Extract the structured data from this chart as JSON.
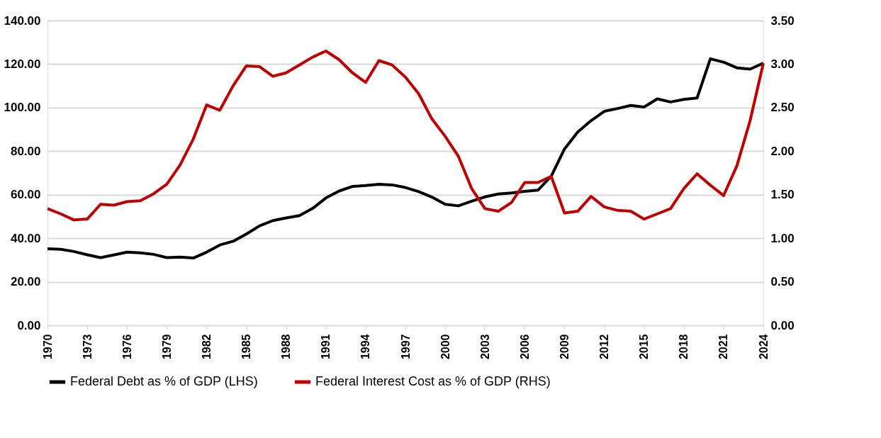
{
  "chart_data": {
    "type": "line",
    "x": [
      1970,
      1971,
      1972,
      1973,
      1974,
      1975,
      1976,
      1977,
      1978,
      1979,
      1980,
      1981,
      1982,
      1983,
      1984,
      1985,
      1986,
      1987,
      1988,
      1989,
      1990,
      1991,
      1992,
      1993,
      1994,
      1995,
      1996,
      1997,
      1998,
      1999,
      2000,
      2001,
      2002,
      2003,
      2004,
      2005,
      2006,
      2007,
      2008,
      2009,
      2010,
      2011,
      2012,
      2013,
      2014,
      2015,
      2016,
      2017,
      2018,
      2019,
      2020,
      2021,
      2022,
      2023,
      2024
    ],
    "series": [
      {
        "name": "Federal Debt as % of GDP (LHS)",
        "color": "#000000",
        "axis": "y",
        "values": [
          35.2,
          34.9,
          33.9,
          32.4,
          31.1,
          32.3,
          33.6,
          33.3,
          32.6,
          31.1,
          31.3,
          30.9,
          33.6,
          36.9,
          38.6,
          41.9,
          45.7,
          48.1,
          49.3,
          50.4,
          53.7,
          58.5,
          61.7,
          63.8,
          64.2,
          64.8,
          64.5,
          63.3,
          61.4,
          58.9,
          55.6,
          54.9,
          57.0,
          59.0,
          60.3,
          60.8,
          61.5,
          62.1,
          68.5,
          81.0,
          88.8,
          94.0,
          98.3,
          99.6,
          101.0,
          100.3,
          104.0,
          102.6,
          103.8,
          104.4,
          122.4,
          120.9,
          118.3,
          117.7,
          120.4
        ]
      },
      {
        "name": "Federal Interest Cost as % of GDP (RHS)",
        "color": "#c00000",
        "axis": "y2",
        "values": [
          1.34,
          1.28,
          1.21,
          1.22,
          1.39,
          1.38,
          1.42,
          1.43,
          1.51,
          1.62,
          1.84,
          2.14,
          2.53,
          2.47,
          2.75,
          2.98,
          2.97,
          2.86,
          2.9,
          2.99,
          3.08,
          3.15,
          3.05,
          2.9,
          2.79,
          3.04,
          2.99,
          2.85,
          2.66,
          2.37,
          2.17,
          1.94,
          1.57,
          1.34,
          1.31,
          1.41,
          1.64,
          1.64,
          1.71,
          1.29,
          1.31,
          1.48,
          1.36,
          1.32,
          1.31,
          1.22,
          1.28,
          1.34,
          1.57,
          1.74,
          1.61,
          1.49,
          1.83,
          2.35,
          3.01
        ]
      }
    ],
    "xlim": [
      1970,
      2024
    ],
    "xticks": [
      1970,
      1973,
      1976,
      1979,
      1982,
      1985,
      1988,
      1991,
      1994,
      1997,
      2000,
      2003,
      2006,
      2009,
      2012,
      2015,
      2018,
      2021,
      2024
    ],
    "ylim": [
      0,
      140
    ],
    "yticks": [
      {
        "value": 0,
        "label": "0.00"
      },
      {
        "value": 20,
        "label": "20.00"
      },
      {
        "value": 40,
        "label": "40.00"
      },
      {
        "value": 60,
        "label": "60.00"
      },
      {
        "value": 80,
        "label": "80.00"
      },
      {
        "value": 100,
        "label": "100.00"
      },
      {
        "value": 120,
        "label": "120.00"
      },
      {
        "value": 140,
        "label": "140.00"
      }
    ],
    "y2lim": [
      0,
      3.5
    ],
    "y2ticks": [
      {
        "value": 0,
        "label": "0.00"
      },
      {
        "value": 0.5,
        "label": "0.50"
      },
      {
        "value": 1,
        "label": "1.00"
      },
      {
        "value": 1.5,
        "label": "1.50"
      },
      {
        "value": 2,
        "label": "2.00"
      },
      {
        "value": 2.5,
        "label": "2.50"
      },
      {
        "value": 3,
        "label": "3.00"
      },
      {
        "value": 3.5,
        "label": "3.50"
      }
    ],
    "grid": "y",
    "legend": "bottom",
    "line_style": "solid"
  }
}
